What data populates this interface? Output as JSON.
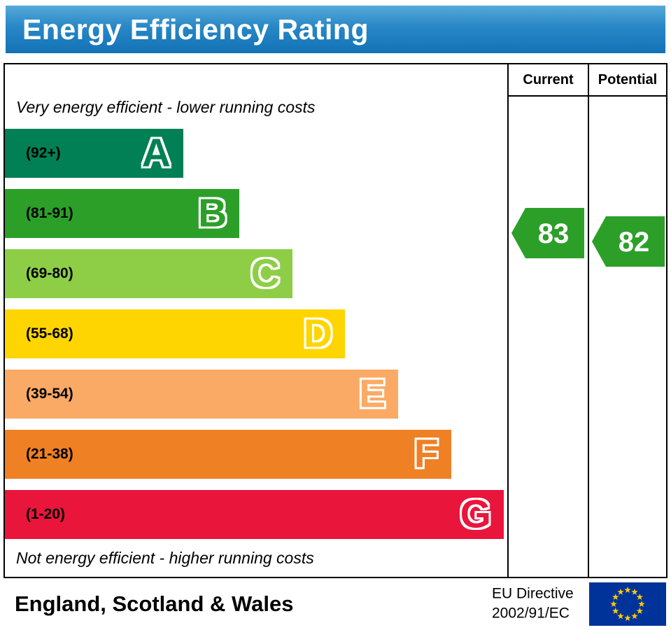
{
  "header": {
    "title": "Energy Efficiency Rating",
    "bg_color": "#1d7dc1"
  },
  "columns": {
    "current": "Current",
    "potential": "Potential"
  },
  "notes": {
    "top": "Very energy efficient - lower running costs",
    "bottom": "Not energy efficient - higher running costs"
  },
  "bands": [
    {
      "letter": "A",
      "range": "(92+)",
      "color": "#008054",
      "width_pct": 35.5
    },
    {
      "letter": "B",
      "range": "(81-91)",
      "color": "#2c9f29",
      "width_pct": 46.7
    },
    {
      "letter": "C",
      "range": "(69-80)",
      "color": "#8dce46",
      "width_pct": 57.2
    },
    {
      "letter": "D",
      "range": "(55-68)",
      "color": "#ffd500",
      "width_pct": 67.7
    },
    {
      "letter": "E",
      "range": "(39-54)",
      "color": "#fbaa65",
      "width_pct": 78.3
    },
    {
      "letter": "F",
      "range": "(21-38)",
      "color": "#ef8023",
      "width_pct": 88.8
    },
    {
      "letter": "G",
      "range": "(1-20)",
      "color": "#e9153b",
      "width_pct": 99.3
    }
  ],
  "ratings": {
    "current": {
      "value": "83",
      "color": "#2c9f29"
    },
    "potential": {
      "value": "82",
      "color": "#2c9f29"
    }
  },
  "footer": {
    "region": "England, Scotland & Wales",
    "directive_line1": "EU Directive",
    "directive_line2": "2002/91/EC"
  },
  "chart_data": {
    "type": "bar",
    "title": "Energy Efficiency Rating",
    "categories": [
      "A (92+)",
      "B (81-91)",
      "C (69-80)",
      "D (55-68)",
      "E (39-54)",
      "F (21-38)",
      "G (1-20)"
    ],
    "values": [
      35.5,
      46.7,
      57.2,
      67.7,
      78.3,
      88.8,
      99.3
    ],
    "band_colors": [
      "#008054",
      "#2c9f29",
      "#8dce46",
      "#ffd500",
      "#fbaa65",
      "#ef8023",
      "#e9153b"
    ],
    "markers": [
      {
        "label": "Current",
        "value": 83,
        "band": "B"
      },
      {
        "label": "Potential",
        "value": 82,
        "band": "B"
      }
    ],
    "top_note": "Very energy efficient - lower running costs",
    "bottom_note": "Not energy efficient - higher running costs",
    "footer_text": "England, Scotland & Wales, EU Directive 2002/91/EC"
  }
}
